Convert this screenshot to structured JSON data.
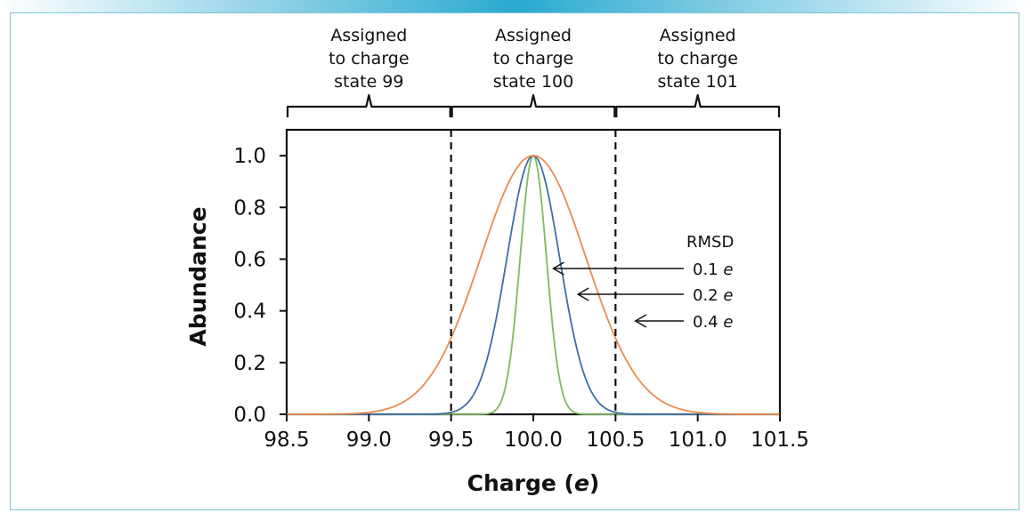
{
  "chart_data": {
    "type": "line",
    "title": "",
    "xlabel": "Charge (e)",
    "xlabel_prefix": "Charge (",
    "xlabel_italic": "e",
    "xlabel_suffix": ")",
    "ylabel": "Abundance",
    "xlim": [
      98.5,
      101.5
    ],
    "ylim": [
      0.0,
      1.1
    ],
    "x_ticks": [
      "98.5",
      "99.0",
      "99.5",
      "100.0",
      "100.5",
      "101.0",
      "101.5"
    ],
    "y_ticks": [
      "0.0",
      "0.2",
      "0.4",
      "0.6",
      "0.8",
      "1.0"
    ],
    "center": 100.0,
    "series": [
      {
        "name": "0.1 e",
        "rmsd": 0.1,
        "color": "#7dba5f"
      },
      {
        "name": "0.2 e",
        "rmsd": 0.2,
        "color": "#3e6ea3"
      },
      {
        "name": "0.4 e",
        "rmsd": 0.4,
        "color": "#ec8a4f"
      }
    ],
    "boundaries": [
      99.5,
      100.5
    ],
    "regions": [
      {
        "lines": [
          "Assigned",
          "to charge",
          "state 99"
        ],
        "from": 98.5,
        "to": 99.5
      },
      {
        "lines": [
          "Assigned",
          "to charge",
          "state 100"
        ],
        "from": 99.5,
        "to": 100.5
      },
      {
        "lines": [
          "Assigned",
          "to charge",
          "state 101"
        ],
        "from": 100.5,
        "to": 101.5
      }
    ],
    "legend": {
      "title": "RMSD",
      "entries": [
        {
          "value": "0.1",
          "unit": "e",
          "arrow_tip_x": 100.1
        },
        {
          "value": "0.2",
          "unit": "e",
          "arrow_tip_x": 100.25
        },
        {
          "value": "0.4",
          "unit": "e",
          "arrow_tip_x": 100.6
        }
      ]
    }
  }
}
